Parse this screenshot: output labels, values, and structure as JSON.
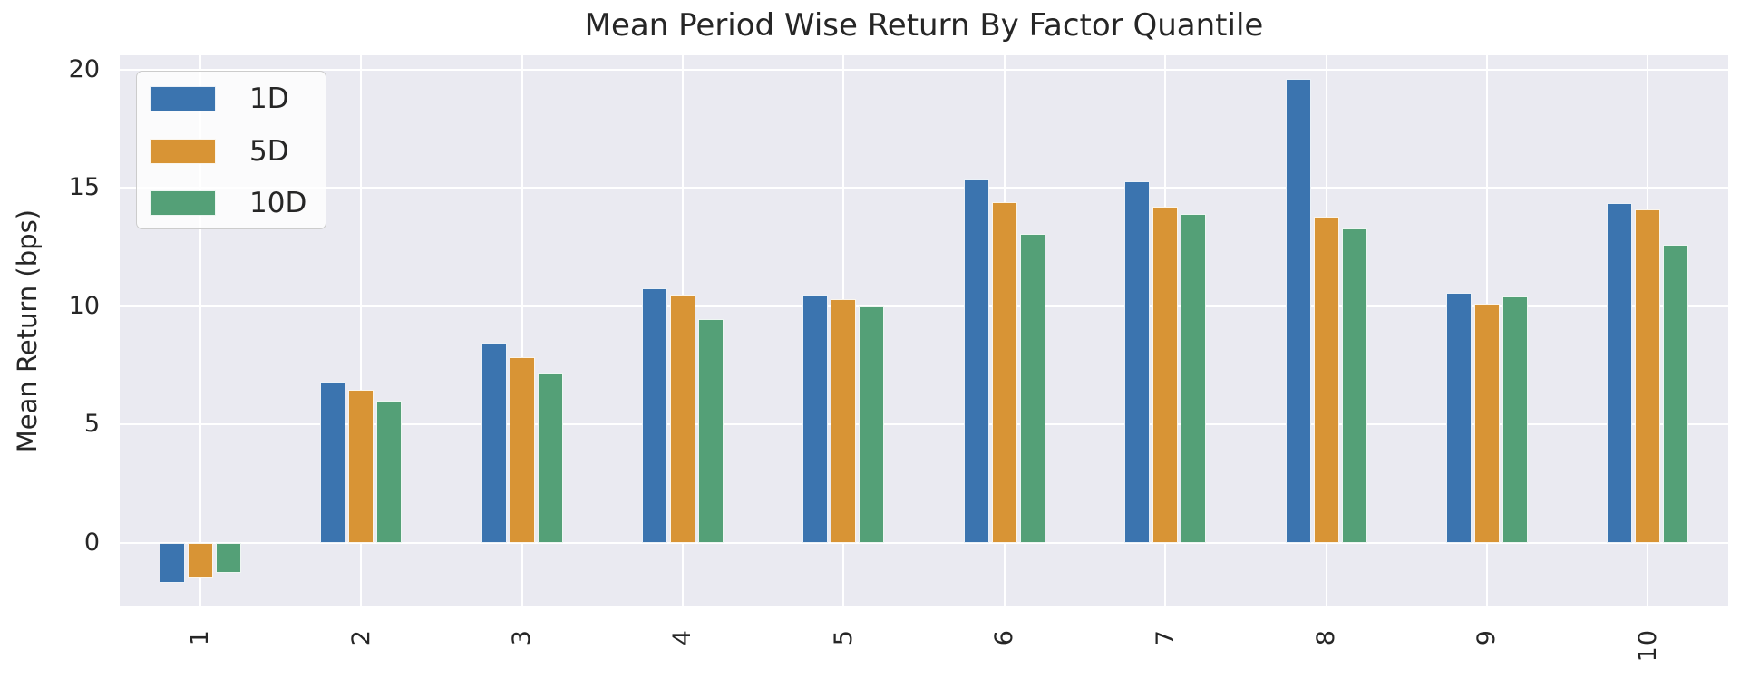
{
  "chart_data": {
    "type": "bar",
    "title": "Mean Period Wise Return By Factor Quantile",
    "xlabel": "",
    "ylabel": "Mean Return (bps)",
    "categories": [
      "1",
      "2",
      "3",
      "4",
      "5",
      "6",
      "7",
      "8",
      "9",
      "10"
    ],
    "series": [
      {
        "name": "1D",
        "color": "#3B74AF",
        "values": [
          -1.7,
          6.8,
          8.45,
          10.75,
          10.5,
          15.35,
          15.3,
          19.6,
          10.55,
          14.35
        ]
      },
      {
        "name": "5D",
        "color": "#D89435",
        "values": [
          -1.5,
          6.45,
          7.85,
          10.5,
          10.3,
          14.4,
          14.2,
          13.8,
          10.1,
          14.1
        ]
      },
      {
        "name": "10D",
        "color": "#54A077",
        "values": [
          -1.3,
          6.0,
          7.15,
          9.45,
          10.0,
          13.05,
          13.9,
          13.3,
          10.4,
          12.6
        ]
      }
    ],
    "yticks": [
      0,
      5,
      10,
      15,
      20
    ],
    "ylim": [
      -2.7,
      20.61
    ],
    "grid": true,
    "legend_position": "upper left",
    "colors": {
      "plot_background": "#EAEAF1",
      "figure_background": "#FFFFFF",
      "grid": "#FFFFFF",
      "text": "#262626",
      "legend_border": "#CCCCCC"
    }
  }
}
